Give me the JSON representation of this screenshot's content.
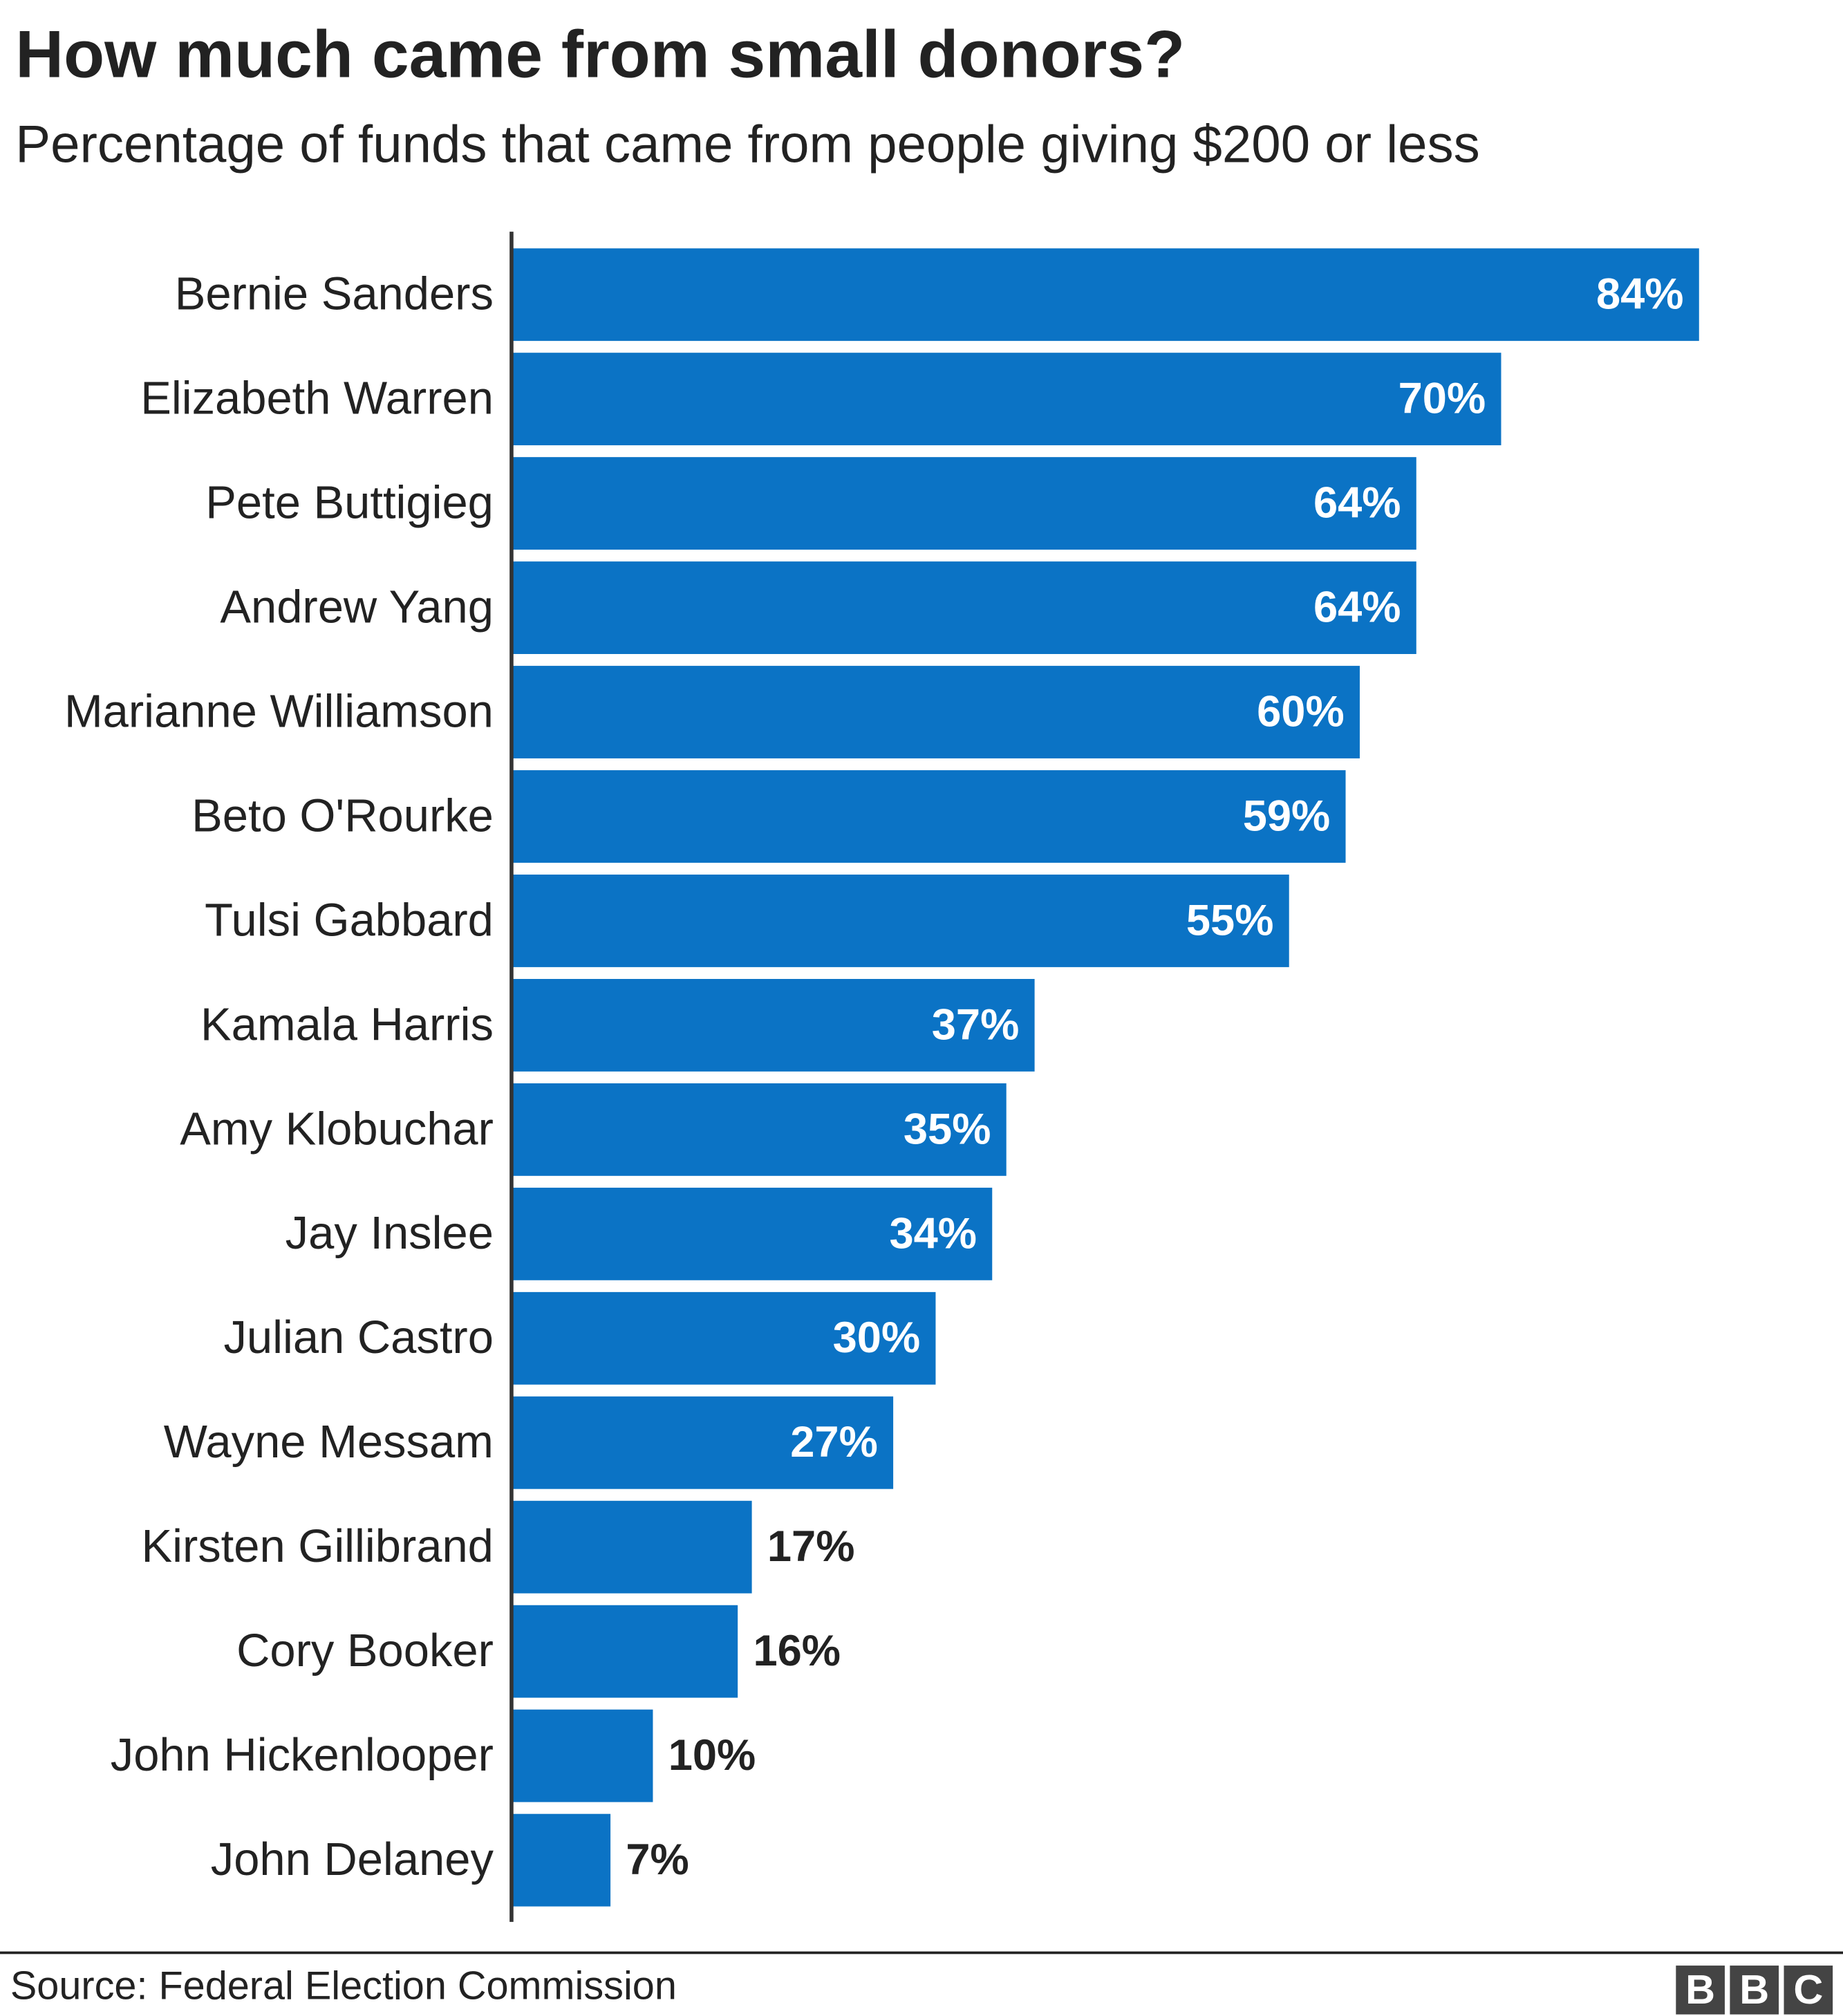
{
  "chart_data": {
    "type": "bar",
    "orientation": "horizontal",
    "title": "How much came from small donors?",
    "subtitle": "Percentage of funds that came from people giving $200 or less",
    "categories": [
      "Bernie Sanders",
      "Elizabeth Warren",
      "Pete Buttigieg",
      "Andrew Yang",
      "Marianne Williamson",
      "Beto O'Rourke",
      "Tulsi Gabbard",
      "Kamala Harris",
      "Amy Klobuchar",
      "Jay Inslee",
      "Julian Castro",
      "Wayne Messam",
      "Kirsten Gillibrand",
      "Cory Booker",
      "John Hickenlooper",
      "John Delaney"
    ],
    "values": [
      84,
      70,
      64,
      64,
      60,
      59,
      55,
      37,
      35,
      34,
      30,
      27,
      17,
      16,
      10,
      7
    ],
    "value_labels": [
      "84%",
      "70%",
      "64%",
      "64%",
      "60%",
      "59%",
      "55%",
      "37%",
      "35%",
      "34%",
      "30%",
      "27%",
      "17%",
      "16%",
      "10%",
      "7%"
    ],
    "color": "#0b73c5",
    "source": "Source: Federal Election Commission",
    "logo": [
      "B",
      "B",
      "C"
    ]
  }
}
